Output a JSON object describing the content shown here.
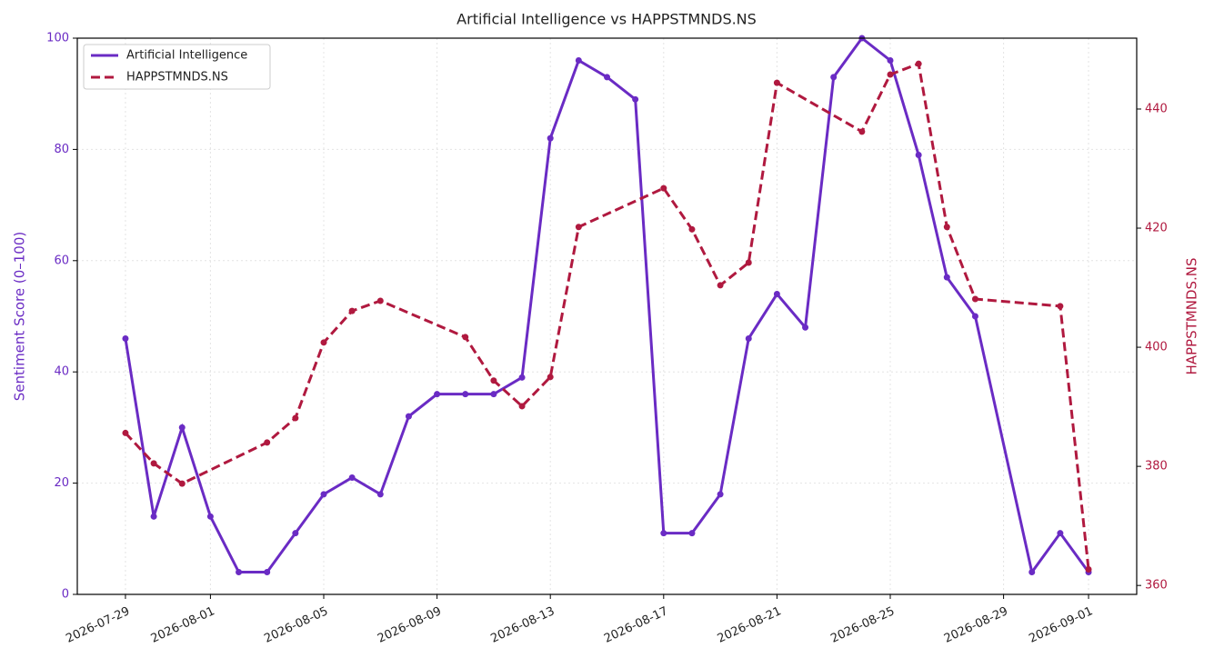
{
  "chart_data": {
    "type": "line",
    "title": "Artificial Intelligence vs HAPPSTMNDS.NS",
    "ylabel": "Sentiment Score (0–100)",
    "y2label": "HAPPSTMNDS.NS",
    "xlim": [
      "2026-07-27T07:12",
      "2026-09-02T16:48"
    ],
    "xticks": [
      "2026-07-29",
      "2026-08-01",
      "2026-08-05",
      "2026-08-09",
      "2026-08-13",
      "2026-08-17",
      "2026-08-21",
      "2026-08-25",
      "2026-08-29",
      "2026-09-01"
    ],
    "ylim": [
      0,
      100
    ],
    "yticks": [
      0,
      20,
      40,
      60,
      80,
      100
    ],
    "y2lim": [
      358.5,
      451.9
    ],
    "y2ticks": [
      360,
      380,
      400,
      420,
      440
    ],
    "grid": true,
    "legend": "upper left",
    "series": [
      {
        "name": "Artificial Intelligence",
        "color": "#6a2bc4",
        "style": "solid",
        "x": [
          "2026-07-29",
          "2026-07-30",
          "2026-07-31",
          "2026-08-01",
          "2026-08-02",
          "2026-08-03",
          "2026-08-04",
          "2026-08-05",
          "2026-08-06",
          "2026-08-07",
          "2026-08-08",
          "2026-08-09",
          "2026-08-10",
          "2026-08-11",
          "2026-08-12",
          "2026-08-13",
          "2026-08-14",
          "2026-08-15",
          "2026-08-16",
          "2026-08-17",
          "2026-08-18",
          "2026-08-19",
          "2026-08-20",
          "2026-08-21",
          "2026-08-22",
          "2026-08-23",
          "2026-08-24",
          "2026-08-25",
          "2026-08-26",
          "2026-08-27",
          "2026-08-28",
          "2026-08-30",
          "2026-08-31",
          "2026-09-01"
        ],
        "values": [
          46,
          14,
          30,
          14,
          4,
          4,
          11,
          18,
          21,
          18,
          32,
          36,
          36,
          36,
          39,
          82,
          96,
          93,
          89,
          11,
          11,
          18,
          46,
          54,
          48,
          93,
          100,
          96,
          79,
          57,
          50,
          4,
          11,
          4
        ]
      },
      {
        "name": "HAPPSTMNDS.NS",
        "color": "#b0193f",
        "style": "dashed",
        "axis": "y2",
        "x": [
          "2026-07-29",
          "2026-07-30",
          "2026-07-31",
          "2026-08-03",
          "2026-08-04",
          "2026-08-05",
          "2026-08-06",
          "2026-08-07",
          "2026-08-10",
          "2026-08-11",
          "2026-08-12",
          "2026-08-13",
          "2026-08-14",
          "2026-08-17",
          "2026-08-18",
          "2026-08-19",
          "2026-08-20",
          "2026-08-21",
          "2026-08-24",
          "2026-08-25",
          "2026-08-26",
          "2026-08-27",
          "2026-08-28",
          "2026-08-31",
          "2026-09-01"
        ],
        "values": [
          385.6,
          380.5,
          377.1,
          384.0,
          388.1,
          400.8,
          406.1,
          407.8,
          401.7,
          394.4,
          390.1,
          395.0,
          420.2,
          426.7,
          419.8,
          410.4,
          414.2,
          444.4,
          436.2,
          445.8,
          447.6,
          420.2,
          408.1,
          406.9,
          362.7
        ]
      }
    ]
  }
}
